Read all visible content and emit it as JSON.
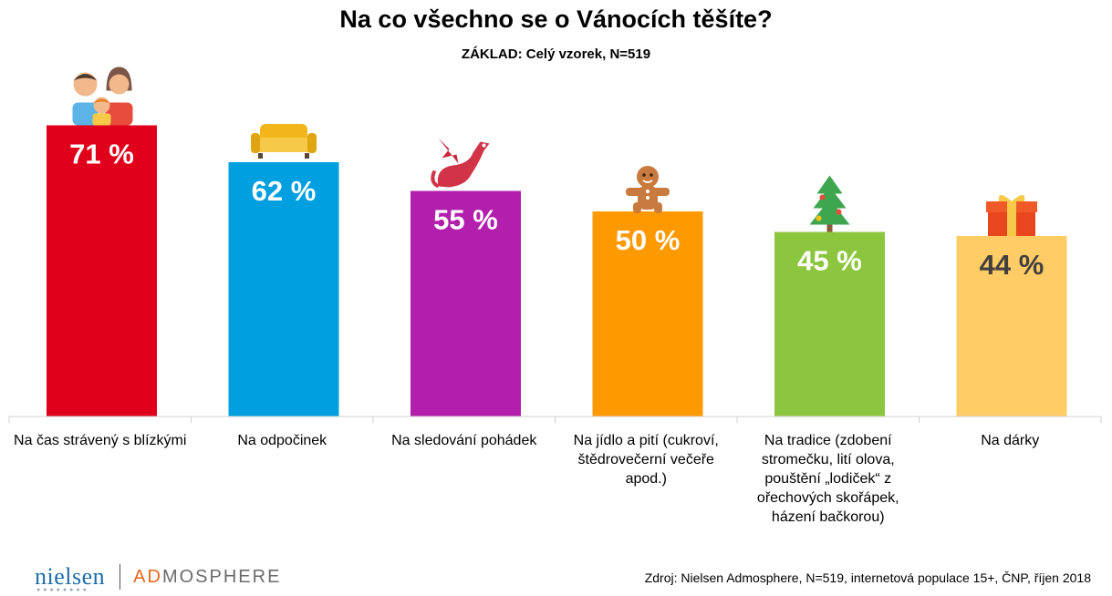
{
  "chart_data": {
    "type": "bar",
    "title": "Na co všechno se o Vánocích těšíte?",
    "subtitle": "ZÁKLAD: Celý vzorek, N=519",
    "categories": [
      "Na čas strávený s blízkými",
      "Na odpočinek",
      "Na sledování pohádek",
      "Na jídlo a pití (cukroví, štědrovečerní večeře apod.)",
      "Na tradice (zdobení stromečku, lití olova, pouštění „lodiček“ z ořechových skořápek, házení bačkorou)",
      "Na dárky"
    ],
    "values": [
      71,
      62,
      55,
      50,
      45,
      44
    ],
    "value_labels": [
      "71 %",
      "62 %",
      "55 %",
      "50 %",
      "45 %",
      "44 %"
    ],
    "colors": [
      "#e0001b",
      "#009fdf",
      "#b21fac",
      "#ff9900",
      "#8cc63f",
      "#ffcc66"
    ],
    "label_colors": [
      "#ffffff",
      "#ffffff",
      "#ffffff",
      "#ffffff",
      "#ffffff",
      "#404040"
    ],
    "icons": [
      "family-icon",
      "sofa-icon",
      "dragon-icon",
      "gingerbread-icon",
      "christmas-tree-icon",
      "gift-icon"
    ],
    "ylim": [
      0,
      100
    ],
    "xlabel": "",
    "ylabel": "",
    "grid": false,
    "legend": "none"
  },
  "category_lines": [
    [
      "Na čas strávený s blízkými"
    ],
    [
      "Na odpočinek"
    ],
    [
      "Na sledování pohádek"
    ],
    [
      "Na jídlo a pití (cukroví,",
      "štědrovečerní večeře",
      "apod.)"
    ],
    [
      "Na tradice (zdobení",
      "stromečku, lití olova,",
      "pouštění „lodiček“ z",
      "ořechových skořápek,",
      "házení bačkorou)"
    ],
    [
      "Na dárky"
    ]
  ],
  "footer": {
    "logo_nielsen": "nielsen",
    "logo_ad": "AD",
    "logo_mosphere": "MOSPHERE",
    "source": "Zdroj: Nielsen Admosphere, N=519, internetová populace 15+, ČNP, říjen 2018"
  }
}
